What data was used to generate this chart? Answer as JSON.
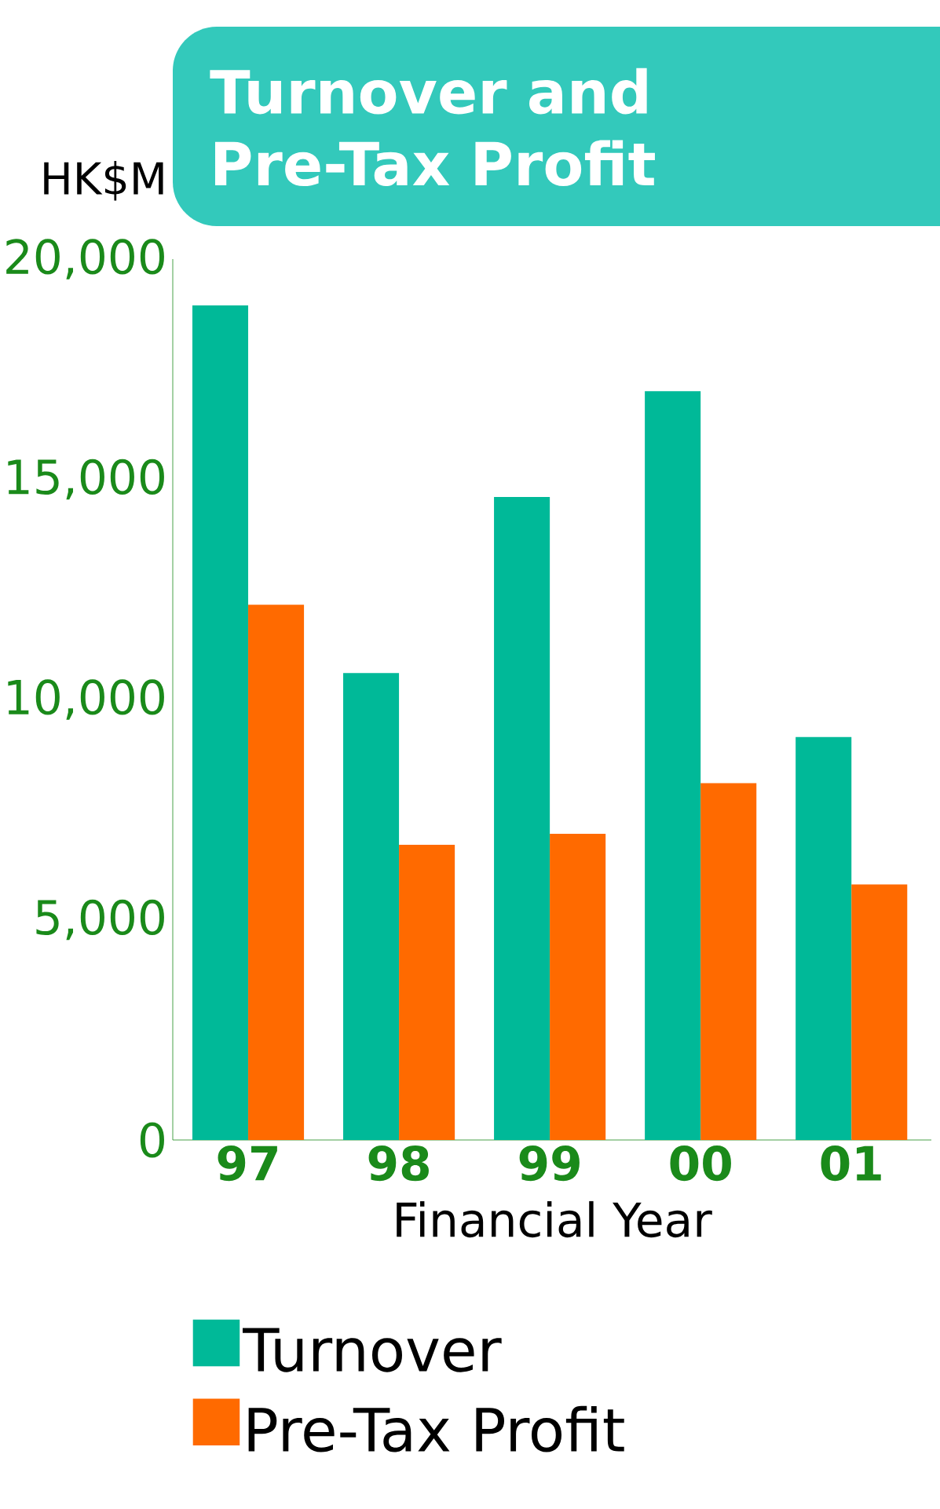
{
  "chart_data": {
    "type": "bar",
    "title": "Turnover and Pre-Tax Profit",
    "ylabel": "HK$M",
    "xlabel": "Financial Year",
    "categories": [
      "97",
      "98",
      "99",
      "00",
      "01"
    ],
    "series": [
      {
        "name": "Turnover",
        "color": "#00b998",
        "values": [
          18950,
          10600,
          14600,
          17000,
          9150
        ]
      },
      {
        "name": "Pre-Tax Profit",
        "color": "#ff6a00",
        "values": [
          12150,
          6700,
          6950,
          8100,
          5800
        ]
      }
    ],
    "ylim": [
      0,
      20000
    ],
    "yticks": [
      0,
      {
        "value": 5000,
        "label": "5,000"
      },
      {
        "value": 10000,
        "label": "10,000"
      },
      {
        "value": 15000,
        "label": "15,000"
      },
      {
        "value": 20000,
        "label": "20,000"
      }
    ],
    "legend": "bottom",
    "grid": false
  }
}
